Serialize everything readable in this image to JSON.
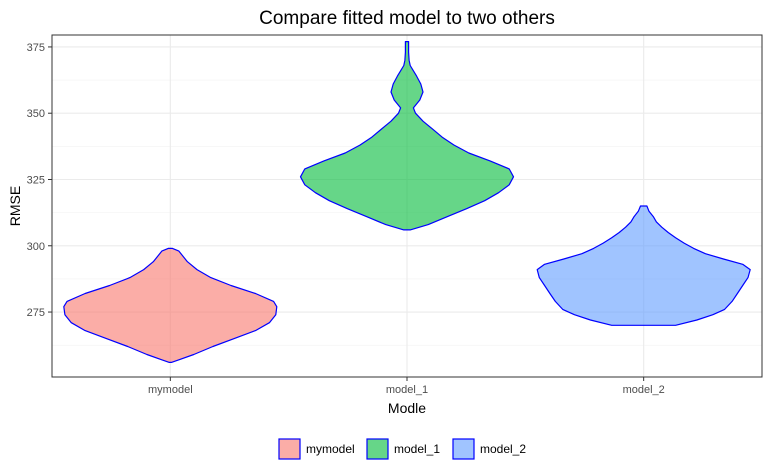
{
  "chart_data": {
    "type": "violin",
    "title": "Compare fitted model to two others",
    "xlabel": "Modle",
    "ylabel": "RMSE",
    "ylim": [
      250.5,
      379.5
    ],
    "yticks": [
      275,
      300,
      325,
      350,
      375
    ],
    "grid": true,
    "legend_position": "bottom",
    "outline_color": "#0000ff",
    "categories": [
      "mymodel",
      "model_1",
      "model_2"
    ],
    "series": [
      {
        "name": "mymodel",
        "color": "#F8766D",
        "min": 256,
        "max": 299,
        "profile": [
          [
            256,
            0.01
          ],
          [
            257,
            0.08
          ],
          [
            259,
            0.22
          ],
          [
            262,
            0.4
          ],
          [
            265,
            0.6
          ],
          [
            268,
            0.8
          ],
          [
            271,
            0.93
          ],
          [
            274,
            0.99
          ],
          [
            277,
            1.0
          ],
          [
            279,
            0.97
          ],
          [
            282,
            0.8
          ],
          [
            285,
            0.57
          ],
          [
            288,
            0.38
          ],
          [
            291,
            0.25
          ],
          [
            294,
            0.16
          ],
          [
            296,
            0.12
          ],
          [
            298,
            0.08
          ],
          [
            299,
            0.02
          ]
        ]
      },
      {
        "name": "model_1",
        "color": "#00BA38",
        "min": 306,
        "max": 377,
        "profile": [
          [
            306,
            0.03
          ],
          [
            308,
            0.2
          ],
          [
            311,
            0.38
          ],
          [
            314,
            0.56
          ],
          [
            317,
            0.73
          ],
          [
            320,
            0.86
          ],
          [
            323,
            0.96
          ],
          [
            326,
            1.0
          ],
          [
            329,
            0.96
          ],
          [
            332,
            0.78
          ],
          [
            335,
            0.58
          ],
          [
            338,
            0.44
          ],
          [
            341,
            0.33
          ],
          [
            344,
            0.24
          ],
          [
            347,
            0.15
          ],
          [
            350,
            0.08
          ],
          [
            352,
            0.06
          ],
          [
            355,
            0.12
          ],
          [
            358,
            0.15
          ],
          [
            361,
            0.13
          ],
          [
            364,
            0.09
          ],
          [
            366,
            0.06
          ],
          [
            368,
            0.03
          ],
          [
            370,
            0.02
          ],
          [
            373,
            0.015
          ],
          [
            375,
            0.015
          ],
          [
            377,
            0.015
          ]
        ]
      },
      {
        "name": "model_2",
        "color": "#619CFF",
        "min": 270,
        "max": 315,
        "profile": [
          [
            270,
            0.3
          ],
          [
            272,
            0.5
          ],
          [
            274,
            0.65
          ],
          [
            276,
            0.76
          ],
          [
            279,
            0.83
          ],
          [
            282,
            0.88
          ],
          [
            285,
            0.93
          ],
          [
            288,
            0.98
          ],
          [
            291,
            1.0
          ],
          [
            293,
            0.93
          ],
          [
            295,
            0.75
          ],
          [
            297,
            0.58
          ],
          [
            299,
            0.47
          ],
          [
            301,
            0.38
          ],
          [
            303,
            0.3
          ],
          [
            305,
            0.23
          ],
          [
            307,
            0.17
          ],
          [
            309,
            0.12
          ],
          [
            311,
            0.09
          ],
          [
            313,
            0.05
          ],
          [
            315,
            0.03
          ]
        ]
      }
    ]
  }
}
